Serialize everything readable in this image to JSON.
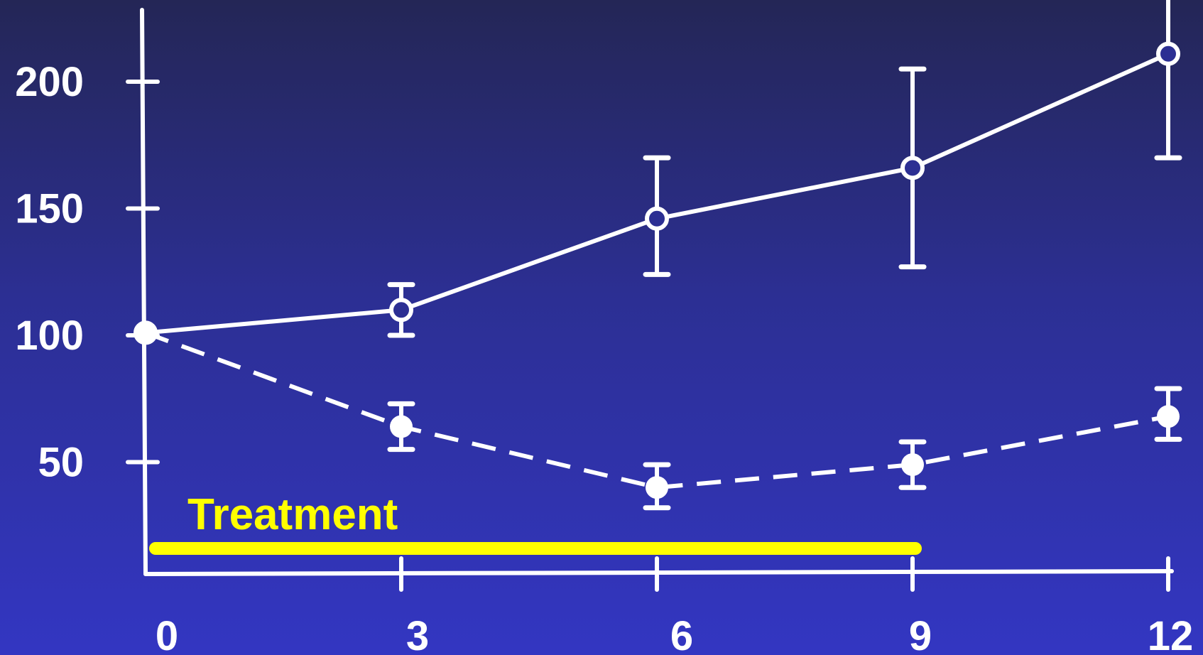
{
  "chart_data": {
    "type": "line",
    "title": "",
    "xlabel": "",
    "ylabel": "",
    "x_ticks": [
      "0",
      "3",
      "6",
      "9",
      "12"
    ],
    "y_ticks": [
      "50",
      "100",
      "150",
      "200"
    ],
    "xlim": [
      0,
      12
    ],
    "ylim": [
      10,
      230
    ],
    "grid": false,
    "legend": "none",
    "series": [
      {
        "style": "solid",
        "marker": "open-circle",
        "color": "#ffffff",
        "points": [
          {
            "x": 0,
            "y": 101,
            "err_low": null,
            "err_high": null
          },
          {
            "x": 3,
            "y": 110,
            "err_low": 100,
            "err_high": 120
          },
          {
            "x": 6,
            "y": 146,
            "err_low": 124,
            "err_high": 170
          },
          {
            "x": 9,
            "y": 166,
            "err_low": 127,
            "err_high": 205
          },
          {
            "x": 12,
            "y": 211,
            "err_low": 170,
            "err_high": 240
          }
        ]
      },
      {
        "style": "dashed",
        "marker": "filled-circle",
        "color": "#ffffff",
        "points": [
          {
            "x": 0,
            "y": 101,
            "err_low": null,
            "err_high": null
          },
          {
            "x": 3,
            "y": 64,
            "err_low": 55,
            "err_high": 73
          },
          {
            "x": 6,
            "y": 40,
            "err_low": 32,
            "err_high": 49
          },
          {
            "x": 9,
            "y": 49,
            "err_low": 40,
            "err_high": 58
          },
          {
            "x": 12,
            "y": 68,
            "err_low": 59,
            "err_high": 79
          }
        ]
      }
    ],
    "annotation": {
      "label": "Treatment",
      "x_start": 0,
      "x_end": 9,
      "color": "#ffff00"
    }
  }
}
